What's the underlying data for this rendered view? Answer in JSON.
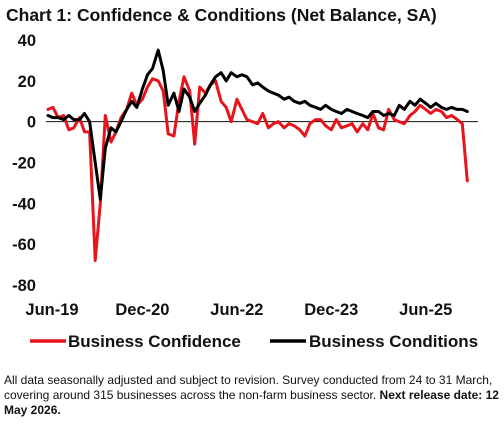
{
  "chart_data": {
    "type": "line",
    "title": "Chart 1: Confidence & Conditions (Net Balance, SA)",
    "ylim": [
      -80,
      40
    ],
    "yticks": [
      40,
      20,
      0,
      -20,
      -40,
      -60,
      -80
    ],
    "xlim": [
      2019.42,
      2026.25
    ],
    "xticks": [
      {
        "label": "Jun-19",
        "x": 2019.42
      },
      {
        "label": "Dec-20",
        "x": 2020.92
      },
      {
        "label": "Jun-22",
        "x": 2022.42
      },
      {
        "label": "Dec-23",
        "x": 2023.92
      },
      {
        "label": "Jun-25",
        "x": 2025.42
      }
    ],
    "legend_position": "bottom",
    "series": [
      {
        "name": "Business Confidence",
        "color": "#e8141c",
        "points": [
          [
            2019.42,
            6
          ],
          [
            2019.5,
            7
          ],
          [
            2019.58,
            2
          ],
          [
            2019.67,
            3
          ],
          [
            2019.75,
            -4
          ],
          [
            2019.83,
            -3
          ],
          [
            2019.92,
            2
          ],
          [
            2020.0,
            -5
          ],
          [
            2020.08,
            -5
          ],
          [
            2020.17,
            -68
          ],
          [
            2020.25,
            -40
          ],
          [
            2020.33,
            3
          ],
          [
            2020.42,
            -10
          ],
          [
            2020.5,
            -5
          ],
          [
            2020.58,
            2
          ],
          [
            2020.67,
            6
          ],
          [
            2020.75,
            14
          ],
          [
            2020.83,
            8
          ],
          [
            2020.92,
            11
          ],
          [
            2021.0,
            17
          ],
          [
            2021.08,
            21
          ],
          [
            2021.17,
            20
          ],
          [
            2021.25,
            15
          ],
          [
            2021.33,
            -6
          ],
          [
            2021.42,
            -7
          ],
          [
            2021.5,
            10
          ],
          [
            2021.58,
            22
          ],
          [
            2021.67,
            15
          ],
          [
            2021.75,
            -11
          ],
          [
            2021.83,
            17
          ],
          [
            2021.92,
            14
          ],
          [
            2022.0,
            18
          ],
          [
            2022.08,
            20
          ],
          [
            2022.17,
            10
          ],
          [
            2022.25,
            7
          ],
          [
            2022.33,
            0
          ],
          [
            2022.42,
            11
          ],
          [
            2022.5,
            6
          ],
          [
            2022.58,
            1
          ],
          [
            2022.67,
            0
          ],
          [
            2022.75,
            -1
          ],
          [
            2022.83,
            4
          ],
          [
            2022.92,
            -3
          ],
          [
            2023.0,
            -1
          ],
          [
            2023.08,
            0
          ],
          [
            2023.17,
            -3
          ],
          [
            2023.25,
            -1
          ],
          [
            2023.33,
            -2
          ],
          [
            2023.42,
            -4
          ],
          [
            2023.5,
            -7
          ],
          [
            2023.58,
            -1
          ],
          [
            2023.67,
            1
          ],
          [
            2023.75,
            1
          ],
          [
            2023.83,
            -2
          ],
          [
            2023.92,
            -4
          ],
          [
            2024.0,
            1
          ],
          [
            2024.08,
            -3
          ],
          [
            2024.17,
            -2
          ],
          [
            2024.25,
            -1
          ],
          [
            2024.33,
            -5
          ],
          [
            2024.42,
            -1
          ],
          [
            2024.5,
            -4
          ],
          [
            2024.58,
            4
          ],
          [
            2024.67,
            -3
          ],
          [
            2024.75,
            -4
          ],
          [
            2024.83,
            6
          ],
          [
            2024.92,
            1
          ],
          [
            2025.0,
            0
          ],
          [
            2025.08,
            -1
          ],
          [
            2025.17,
            3
          ],
          [
            2025.25,
            5
          ],
          [
            2025.33,
            8
          ],
          [
            2025.42,
            6
          ],
          [
            2025.5,
            4
          ],
          [
            2025.58,
            6
          ],
          [
            2025.67,
            5
          ],
          [
            2025.75,
            2
          ],
          [
            2025.83,
            3
          ],
          [
            2025.92,
            1
          ],
          [
            2026.0,
            -1
          ],
          [
            2026.08,
            -29
          ]
        ]
      },
      {
        "name": "Business Conditions",
        "color": "#000000",
        "points": [
          [
            2019.42,
            3
          ],
          [
            2019.5,
            2
          ],
          [
            2019.58,
            2
          ],
          [
            2019.67,
            1
          ],
          [
            2019.75,
            3
          ],
          [
            2019.83,
            1
          ],
          [
            2019.92,
            1
          ],
          [
            2020.0,
            4
          ],
          [
            2020.08,
            0
          ],
          [
            2020.17,
            -20
          ],
          [
            2020.25,
            -38
          ],
          [
            2020.33,
            -13
          ],
          [
            2020.42,
            -3
          ],
          [
            2020.5,
            -5
          ],
          [
            2020.58,
            0
          ],
          [
            2020.67,
            6
          ],
          [
            2020.75,
            10
          ],
          [
            2020.83,
            7
          ],
          [
            2020.92,
            16
          ],
          [
            2021.0,
            23
          ],
          [
            2021.08,
            26
          ],
          [
            2021.17,
            35
          ],
          [
            2021.25,
            25
          ],
          [
            2021.33,
            8
          ],
          [
            2021.42,
            14
          ],
          [
            2021.5,
            5
          ],
          [
            2021.58,
            16
          ],
          [
            2021.67,
            12
          ],
          [
            2021.75,
            5
          ],
          [
            2021.83,
            9
          ],
          [
            2021.92,
            13
          ],
          [
            2022.0,
            18
          ],
          [
            2022.08,
            22
          ],
          [
            2022.17,
            24
          ],
          [
            2022.25,
            20
          ],
          [
            2022.33,
            24
          ],
          [
            2022.42,
            22
          ],
          [
            2022.5,
            23
          ],
          [
            2022.58,
            22
          ],
          [
            2022.67,
            18
          ],
          [
            2022.75,
            19
          ],
          [
            2022.83,
            17
          ],
          [
            2022.92,
            15
          ],
          [
            2023.0,
            14
          ],
          [
            2023.08,
            13
          ],
          [
            2023.17,
            11
          ],
          [
            2023.25,
            12
          ],
          [
            2023.33,
            10
          ],
          [
            2023.42,
            9
          ],
          [
            2023.5,
            10
          ],
          [
            2023.58,
            8
          ],
          [
            2023.67,
            7
          ],
          [
            2023.75,
            6
          ],
          [
            2023.83,
            8
          ],
          [
            2023.92,
            6
          ],
          [
            2024.0,
            5
          ],
          [
            2024.08,
            4
          ],
          [
            2024.17,
            6
          ],
          [
            2024.25,
            5
          ],
          [
            2024.33,
            4
          ],
          [
            2024.42,
            3
          ],
          [
            2024.5,
            2
          ],
          [
            2024.58,
            5
          ],
          [
            2024.67,
            5
          ],
          [
            2024.75,
            3
          ],
          [
            2024.83,
            4
          ],
          [
            2024.92,
            3
          ],
          [
            2025.0,
            8
          ],
          [
            2025.08,
            6
          ],
          [
            2025.17,
            10
          ],
          [
            2025.25,
            8
          ],
          [
            2025.33,
            11
          ],
          [
            2025.42,
            9
          ],
          [
            2025.5,
            7
          ],
          [
            2025.58,
            9
          ],
          [
            2025.67,
            7
          ],
          [
            2025.75,
            6
          ],
          [
            2025.83,
            7
          ],
          [
            2025.92,
            6
          ],
          [
            2026.0,
            6
          ],
          [
            2026.08,
            5
          ]
        ]
      }
    ]
  },
  "footnote": {
    "text": "All data seasonally adjusted and subject to revision. Survey conducted from 24 to 31 March, covering around 315 businesses across the non-farm business sector. ",
    "bold": "Next release date: 12 May 2026."
  }
}
